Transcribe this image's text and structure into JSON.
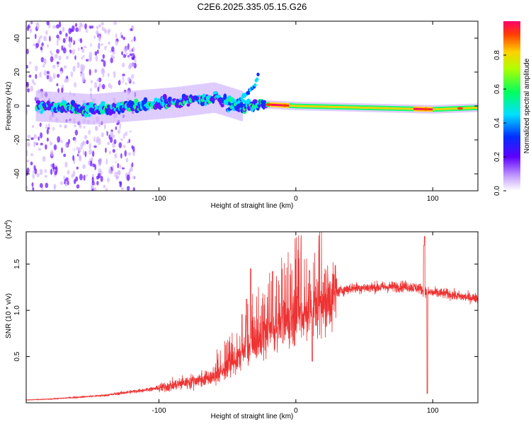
{
  "title": "C2E6.2025.335.05.15.G26",
  "chart_data": [
    {
      "type": "heatmap",
      "name": "spectrogram",
      "xlabel": "Height of straight line (km)",
      "ylabel": "Frequency (Hz)",
      "xlim": [
        -197,
        133
      ],
      "ylim": [
        -50,
        50
      ],
      "xticks": [
        -100,
        0,
        100
      ],
      "yticks": [
        -40,
        -20,
        0,
        20,
        40
      ],
      "ytick_labels": [
        "-40",
        "-20",
        "0",
        "20",
        "40"
      ],
      "colorbar": {
        "label": "Normalized spectral amplitude",
        "range": [
          0,
          1
        ],
        "ticks": [
          "0.0",
          "0.2",
          "0.4",
          "0.6",
          "0.8"
        ]
      },
      "ridge": [
        {
          "x": -190,
          "f": 0
        },
        {
          "x": -150,
          "f": -2
        },
        {
          "x": -120,
          "f": 0
        },
        {
          "x": -90,
          "f": 2
        },
        {
          "x": -60,
          "f": 5
        },
        {
          "x": -40,
          "f": 0
        },
        {
          "x": -25,
          "f": 1
        },
        {
          "x": 0,
          "f": 0
        },
        {
          "x": 50,
          "f": -1
        },
        {
          "x": 100,
          "f": -2
        },
        {
          "x": 133,
          "f": -1
        }
      ],
      "branch": [
        {
          "x": -50,
          "f": -3
        },
        {
          "x": -30,
          "f": 12
        },
        {
          "x": -27,
          "f": 20
        }
      ]
    },
    {
      "type": "line",
      "name": "snr",
      "xlabel": "Height of straight line (km)",
      "ylabel": "SNR (10 * v/v)",
      "multiplier": "(x10",
      "multiplier_exp": "4",
      "multiplier_close": ")",
      "xlim": [
        -197,
        133
      ],
      "ylim": [
        0,
        18500
      ],
      "xticks": [
        -100,
        0,
        100
      ],
      "yticks": [
        5000,
        10000,
        15000
      ],
      "ytick_labels": [
        "0.5",
        "1.0",
        "1.5"
      ],
      "series": [
        {
          "name": "SNR",
          "color": "#ee3333",
          "envelope_x": [
            -197,
            -180,
            -160,
            -140,
            -120,
            -100,
            -80,
            -60,
            -50,
            -40,
            -30,
            -20,
            -10,
            0,
            10,
            20,
            30,
            40,
            60,
            80,
            90,
            95,
            100,
            110,
            120,
            133
          ],
          "envelope_y": [
            300,
            400,
            600,
            800,
            1200,
            1600,
            2200,
            2800,
            3800,
            5200,
            6500,
            7500,
            8500,
            9500,
            10000,
            11000,
            12000,
            12400,
            12500,
            12600,
            12400,
            12000,
            11900,
            11800,
            11500,
            11300
          ]
        }
      ],
      "spikes": [
        {
          "x": -36,
          "y": 11200
        },
        {
          "x": -33,
          "y": 14500
        },
        {
          "x": -17,
          "y": 14200
        },
        {
          "x": 10,
          "y": 14300
        },
        {
          "x": 12,
          "y": 4500
        },
        {
          "x": 94,
          "y": 18000
        },
        {
          "x": 96,
          "y": 1000
        },
        {
          "x": 93.5,
          "y": 17000
        }
      ]
    }
  ]
}
